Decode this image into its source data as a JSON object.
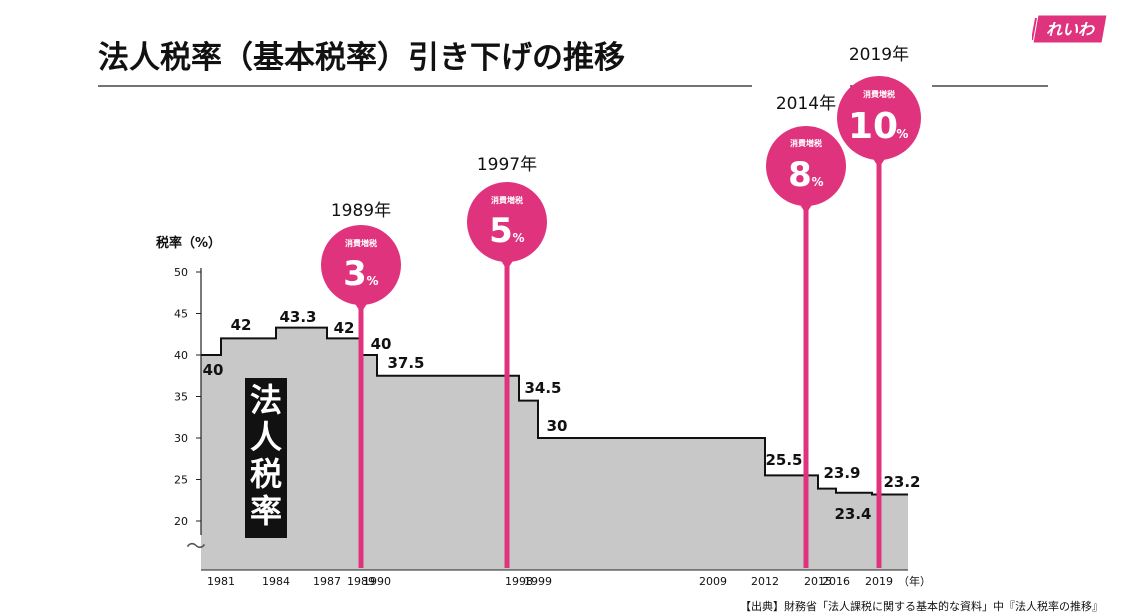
{
  "title": "法人税率（基本税率）引き下げの推移",
  "logo_text": "れいわ",
  "source": "【出典】財務省「法人課税に関する基本的な資料」中『法人税率の推移』",
  "colors": {
    "accent": "#e0337e",
    "area": "#c8c8c8",
    "logo_bg": "#e0337e"
  },
  "chart_data": {
    "type": "area",
    "title": "法人税率（基本税率）引き下げの推移",
    "ylabel": "税率（%）",
    "xlabel": "（年）",
    "ylim": [
      20,
      50
    ],
    "yticks": [
      20,
      25,
      30,
      35,
      40,
      45,
      50
    ],
    "axis_break": "〜",
    "area_label": "法人税率",
    "xticks": [
      "1981",
      "1984",
      "1987",
      "1989",
      "1990",
      "1998",
      "1999",
      "2009",
      "2012",
      "2015",
      "2016",
      "2019"
    ],
    "steps": [
      {
        "from": 1980,
        "to": 1981,
        "value": 40,
        "label": "40"
      },
      {
        "from": 1981,
        "to": 1984,
        "value": 42,
        "label": "42"
      },
      {
        "from": 1984,
        "to": 1987,
        "value": 43.3,
        "label": "43.3"
      },
      {
        "from": 1987,
        "to": 1989,
        "value": 42,
        "label": "42"
      },
      {
        "from": 1989,
        "to": 1990,
        "value": 40,
        "label": "40"
      },
      {
        "from": 1990,
        "to": 1998,
        "value": 37.5,
        "label": "37.5"
      },
      {
        "from": 1998,
        "to": 1999,
        "value": 34.5,
        "label": "34.5"
      },
      {
        "from": 1999,
        "to": 2012,
        "value": 30,
        "label": "30"
      },
      {
        "from": 2012,
        "to": 2015,
        "value": 25.5,
        "label": "25.5"
      },
      {
        "from": 2015,
        "to": 2016,
        "value": 23.9,
        "label": "23.9"
      },
      {
        "from": 2016,
        "to": 2018,
        "value": 23.4,
        "label": "23.4"
      },
      {
        "from": 2018,
        "to": 2020,
        "value": 23.2,
        "label": "23.2"
      }
    ],
    "consumption_tax_events": [
      {
        "year": 1989,
        "year_label": "1989年",
        "tag": "消費増税",
        "rate": "3",
        "unit": "%"
      },
      {
        "year": 1997,
        "year_label": "1997年",
        "tag": "消費増税",
        "rate": "5",
        "unit": "%"
      },
      {
        "year": 2014,
        "year_label": "2014年",
        "tag": "消費増税",
        "rate": "8",
        "unit": "%"
      },
      {
        "year": 2019,
        "year_label": "2019年",
        "tag": "消費増税",
        "rate": "10",
        "unit": "%"
      }
    ]
  }
}
